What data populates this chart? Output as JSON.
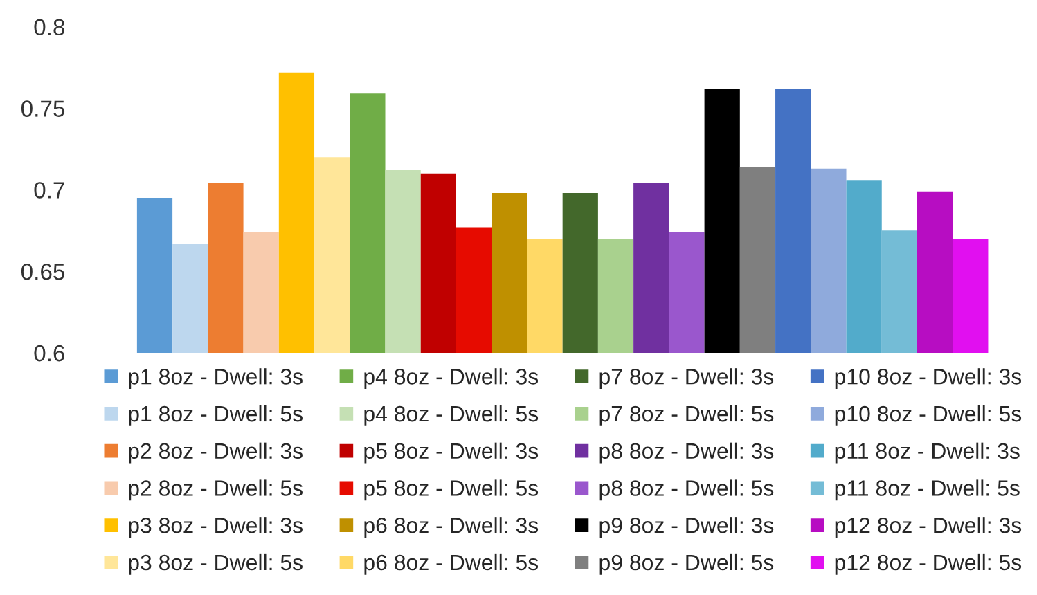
{
  "chart_data": {
    "type": "bar",
    "categories": [
      null
    ],
    "ylim": [
      0.6,
      0.8
    ],
    "yticks": [
      0.6,
      0.65,
      0.7,
      0.75,
      0.8
    ],
    "grid": false,
    "legend": "bottom",
    "series": [
      {
        "name": "p1 8oz - Dwell: 3s",
        "color": "#5b9bd5",
        "values": [
          0.695
        ]
      },
      {
        "name": "p1 8oz - Dwell: 5s",
        "color": "#bdd7ee",
        "values": [
          0.667
        ]
      },
      {
        "name": "p2 8oz - Dwell: 3s",
        "color": "#ed7d31",
        "values": [
          0.704
        ]
      },
      {
        "name": "p2 8oz - Dwell: 5s",
        "color": "#f8cbad",
        "values": [
          0.674
        ]
      },
      {
        "name": "p3 8oz - Dwell: 3s",
        "color": "#ffc000",
        "values": [
          0.772
        ]
      },
      {
        "name": "p3 8oz - Dwell: 5s",
        "color": "#ffe699",
        "values": [
          0.72
        ]
      },
      {
        "name": "p4 8oz - Dwell: 3s",
        "color": "#70ad47",
        "values": [
          0.759
        ]
      },
      {
        "name": "p4 8oz - Dwell: 5s",
        "color": "#c5e0b4",
        "values": [
          0.712
        ]
      },
      {
        "name": "p5 8oz - Dwell: 3s",
        "color": "#c00000",
        "values": [
          0.71
        ]
      },
      {
        "name": "p5 8oz - Dwell: 5s",
        "color": "#e60b00",
        "values": [
          0.677
        ]
      },
      {
        "name": "p6 8oz - Dwell: 3s",
        "color": "#bf9000",
        "values": [
          0.698
        ]
      },
      {
        "name": "p6 8oz - Dwell: 5s",
        "color": "#ffd966",
        "values": [
          0.67
        ]
      },
      {
        "name": "p7 8oz - Dwell: 3s",
        "color": "#43682b",
        "values": [
          0.698
        ]
      },
      {
        "name": "p7 8oz - Dwell: 5s",
        "color": "#a9d18e",
        "values": [
          0.67
        ]
      },
      {
        "name": "p8 8oz - Dwell: 3s",
        "color": "#7030a0",
        "values": [
          0.704
        ]
      },
      {
        "name": "p8 8oz - Dwell: 5s",
        "color": "#9a57cd",
        "values": [
          0.674
        ]
      },
      {
        "name": "p9 8oz - Dwell: 3s",
        "color": "#000000",
        "values": [
          0.762
        ]
      },
      {
        "name": "p9 8oz - Dwell: 5s",
        "color": "#7f7f7f",
        "values": [
          0.714
        ]
      },
      {
        "name": "p10 8oz - Dwell: 3s",
        "color": "#4472c4",
        "values": [
          0.762
        ]
      },
      {
        "name": "p10 8oz - Dwell: 5s",
        "color": "#8faadc",
        "values": [
          0.713
        ]
      },
      {
        "name": "p11 8oz - Dwell: 3s",
        "color": "#52abcb",
        "values": [
          0.706
        ]
      },
      {
        "name": "p11 8oz - Dwell: 5s",
        "color": "#74bcd6",
        "values": [
          0.675
        ]
      },
      {
        "name": "p12 8oz - Dwell: 3s",
        "color": "#b70dc2",
        "values": [
          0.699
        ]
      },
      {
        "name": "p12 8oz - Dwell: 5s",
        "color": "#e10ff0",
        "values": [
          0.67
        ]
      }
    ]
  }
}
